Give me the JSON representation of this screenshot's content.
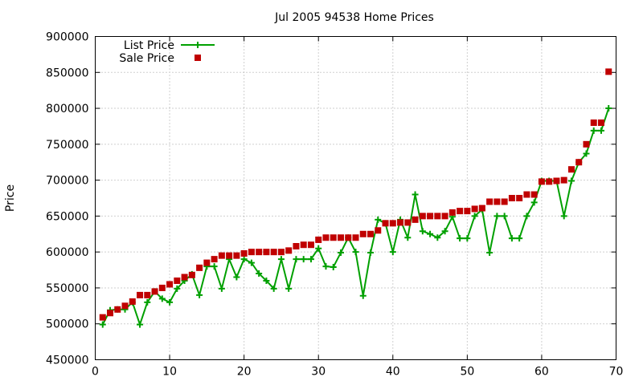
{
  "chart_data": {
    "type": "line",
    "title": "Jul 2005 94538 Home Prices",
    "xlabel": "",
    "ylabel": "Price",
    "xlim": [
      0,
      70
    ],
    "ylim": [
      450000,
      900000
    ],
    "x_ticks": [
      "0",
      "10",
      "20",
      "30",
      "40",
      "50",
      "60",
      "70"
    ],
    "y_ticks": [
      "450000",
      "500000",
      "550000",
      "600000",
      "650000",
      "700000",
      "750000",
      "800000",
      "850000",
      "900000"
    ],
    "grid": true,
    "legend_position": "top-left",
    "x": [
      1,
      2,
      3,
      4,
      5,
      6,
      7,
      8,
      9,
      10,
      11,
      12,
      13,
      14,
      15,
      16,
      17,
      18,
      19,
      20,
      21,
      22,
      23,
      24,
      25,
      26,
      27,
      28,
      29,
      30,
      31,
      32,
      33,
      34,
      35,
      36,
      37,
      38,
      39,
      40,
      41,
      42,
      43,
      44,
      45,
      46,
      47,
      48,
      49,
      50,
      51,
      52,
      53,
      54,
      55,
      56,
      57,
      58,
      59,
      60,
      61,
      62,
      63,
      64,
      65,
      66,
      67,
      68,
      69
    ],
    "series": [
      {
        "name": "List Price",
        "style": "linespoints",
        "color": "#00a000",
        "values": [
          499000,
          519000,
          520000,
          520000,
          530000,
          499000,
          530000,
          545000,
          535000,
          530000,
          549000,
          560000,
          569000,
          540000,
          580000,
          580000,
          549000,
          590000,
          565000,
          590000,
          585000,
          570000,
          560000,
          549000,
          590000,
          549000,
          590000,
          590000,
          590000,
          605000,
          580000,
          579000,
          599000,
          620000,
          600000,
          539000,
          599000,
          645000,
          640000,
          600000,
          645000,
          620000,
          680000,
          629000,
          625000,
          620000,
          629000,
          649000,
          619000,
          619000,
          650000,
          659000,
          599000,
          650000,
          650000,
          619000,
          619000,
          650000,
          669000,
          699000,
          699000,
          699000,
          650000,
          699000,
          725000,
          737000,
          769000,
          769000,
          800000
        ]
      },
      {
        "name": "Sale Price",
        "style": "points",
        "color": "#c00000",
        "values": [
          509000,
          515000,
          520000,
          525000,
          531000,
          540000,
          540000,
          545000,
          550000,
          555000,
          560000,
          565000,
          568000,
          578000,
          585000,
          590000,
          595000,
          595000,
          595000,
          598000,
          600000,
          600000,
          600000,
          600000,
          600000,
          602000,
          608000,
          610000,
          610000,
          617000,
          620000,
          620000,
          620000,
          620000,
          620000,
          625000,
          625000,
          630000,
          640000,
          640000,
          641000,
          641000,
          645000,
          650000,
          650000,
          650000,
          650000,
          655000,
          657000,
          657000,
          660000,
          661000,
          670000,
          670000,
          670000,
          675000,
          675000,
          680000,
          680000,
          698000,
          698000,
          699000,
          700000,
          715000,
          725000,
          750000,
          780000,
          780000,
          851000
        ]
      }
    ]
  }
}
